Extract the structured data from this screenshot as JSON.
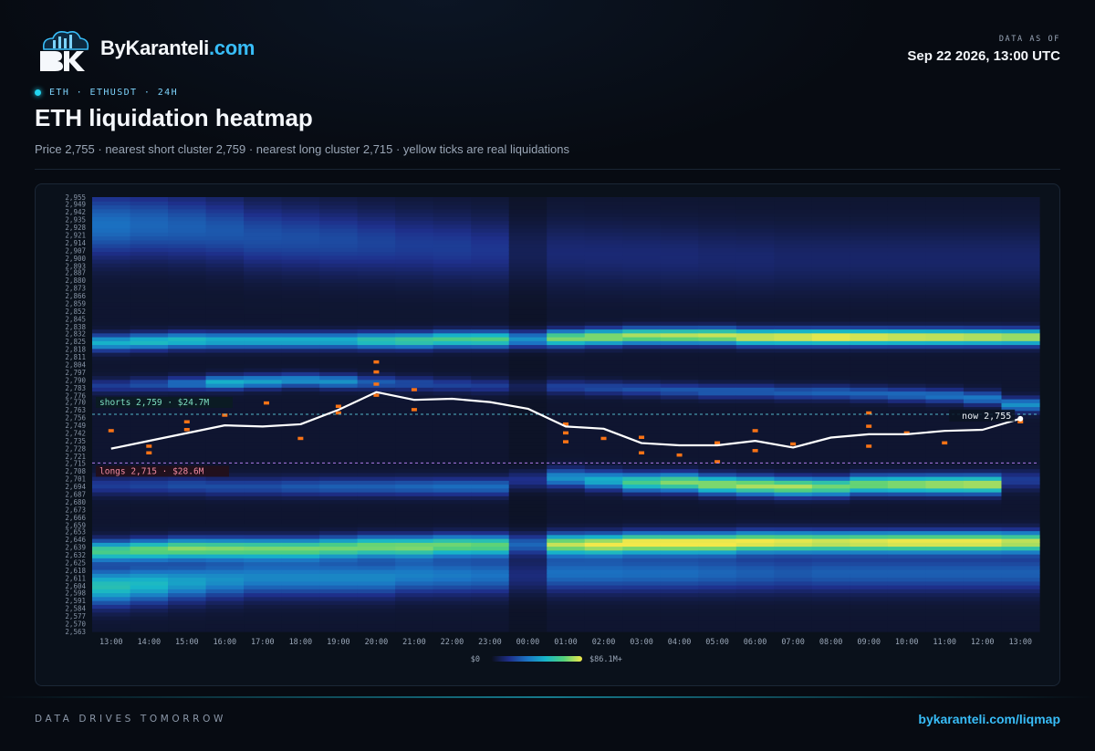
{
  "header": {
    "brand_name": "ByKaranteli",
    "brand_tld": ".com",
    "logo_icon": "bk-cloud-logo",
    "data_as_of_label": "DATA AS OF",
    "data_as_of_value": "Sep 22 2026, 13:00 UTC",
    "ticker": "ETH · ETHUSDT · 24H",
    "title": "ETH liquidation heatmap",
    "subtitle": "Price 2,755 · nearest short cluster 2,759 · nearest long cluster 2,715 · yellow ticks are real liquidations"
  },
  "footer": {
    "tagline": "DATA DRIVES TOMORROW",
    "url": "bykaranteli.com/liqmap"
  },
  "colors": {
    "accent": "#38bdf8",
    "price_line": "#ffffff",
    "short_line": "#5fd3e6",
    "long_line": "#c084fc",
    "liquidation_tick": "#f97316",
    "colorscale": [
      "#0b0f1a",
      "#1e2f8a",
      "#1b74c4",
      "#17b6c9",
      "#54d17a",
      "#f2e84a"
    ]
  },
  "chart_data": {
    "type": "heatmap",
    "y_labels": [
      "2,955",
      "2,949",
      "2,942",
      "2,935",
      "2,928",
      "2,921",
      "2,914",
      "2,907",
      "2,900",
      "2,893",
      "2,887",
      "2,880",
      "2,873",
      "2,866",
      "2,859",
      "2,852",
      "2,845",
      "2,838",
      "2,832",
      "2,825",
      "2,818",
      "2,811",
      "2,804",
      "2,797",
      "2,790",
      "2,783",
      "2,776",
      "2,770",
      "2,763",
      "2,756",
      "2,749",
      "2,742",
      "2,735",
      "2,728",
      "2,721",
      "2,715",
      "2,708",
      "2,701",
      "2,694",
      "2,687",
      "2,680",
      "2,673",
      "2,666",
      "2,659",
      "2,653",
      "2,646",
      "2,639",
      "2,632",
      "2,625",
      "2,618",
      "2,611",
      "2,604",
      "2,598",
      "2,591",
      "2,584",
      "2,577",
      "2,570",
      "2,563"
    ],
    "ylim": [
      2563,
      2955
    ],
    "x_labels": [
      "13:00",
      "14:00",
      "15:00",
      "16:00",
      "17:00",
      "18:00",
      "19:00",
      "20:00",
      "21:00",
      "22:00",
      "23:00",
      "00:00",
      "01:00",
      "02:00",
      "03:00",
      "04:00",
      "05:00",
      "06:00",
      "07:00",
      "08:00",
      "09:00",
      "10:00",
      "11:00",
      "12:00",
      "13:00"
    ],
    "price": [
      2728,
      2735,
      2742,
      2749,
      2748,
      2750,
      2763,
      2779,
      2772,
      2773,
      2770,
      2764,
      2748,
      2746,
      2733,
      2731,
      2731,
      2735,
      2729,
      2738,
      2741,
      2741,
      2744,
      2745,
      2755
    ],
    "current_price": 2755,
    "now_label": "now 2,755",
    "short_cluster": {
      "price": 2759,
      "label": "shorts 2,759 · $24.7M"
    },
    "long_cluster": {
      "price": 2715,
      "label": "longs 2,715 · $28.6M"
    },
    "bands": [
      {
        "center": [
          2824,
          2825,
          2826,
          2826,
          2826,
          2826,
          2826,
          2826,
          2826,
          2827,
          2827,
          2827,
          2828,
          2829,
          2830,
          2830,
          2830,
          2829,
          2829,
          2829,
          2829,
          2829,
          2829,
          2829,
          2829
        ],
        "width": 7,
        "strength": [
          0.55,
          0.6,
          0.6,
          0.55,
          0.55,
          0.55,
          0.55,
          0.65,
          0.7,
          0.72,
          0.74,
          0.78,
          0.82,
          0.86,
          0.88,
          0.9,
          0.92,
          0.95,
          0.97,
          1,
          0.98,
          0.96,
          0.95,
          0.93,
          0.9
        ]
      },
      {
        "center": [
          2636,
          2637,
          2638,
          2638,
          2638,
          2638,
          2639,
          2640,
          2640,
          2641,
          2641,
          2642,
          2642,
          2642,
          2643,
          2643,
          2643,
          2644,
          2644,
          2644,
          2644,
          2644,
          2644,
          2644,
          2644
        ],
        "width": 9,
        "strength": [
          0.72,
          0.78,
          0.82,
          0.8,
          0.78,
          0.78,
          0.78,
          0.8,
          0.8,
          0.78,
          0.76,
          0.55,
          0.88,
          0.95,
          1,
          1,
          1,
          0.97,
          0.95,
          0.92,
          0.94,
          0.96,
          0.96,
          0.96,
          0.9
        ]
      },
      {
        "center": [
          2604,
          2606,
          2608,
          2610,
          2612,
          2612,
          2612,
          2612,
          2614,
          2614,
          2614,
          2614,
          2616,
          2616,
          2616,
          2616,
          2616,
          2616,
          2616,
          2616,
          2616,
          2616,
          2616,
          2616,
          2616
        ],
        "width": 16,
        "strength": [
          0.62,
          0.58,
          0.5,
          0.45,
          0.42,
          0.42,
          0.42,
          0.42,
          0.4,
          0.38,
          0.36,
          0.25,
          0.35,
          0.35,
          0.34,
          0.34,
          0.32,
          0.3,
          0.28,
          0.3,
          0.3,
          0.3,
          0.3,
          0.3,
          0.3
        ]
      },
      {
        "center": [
          2695,
          2695,
          2695,
          2694,
          2694,
          2694,
          2694,
          2694,
          2694,
          2694,
          2694,
          2700,
          2702,
          2700,
          2698,
          2698,
          2696,
          2695,
          2694,
          2694,
          2696,
          2696,
          2696,
          2696,
          2700
        ],
        "width": 8,
        "strength": [
          0.2,
          0.22,
          0.25,
          0.25,
          0.25,
          0.28,
          0.3,
          0.3,
          0.32,
          0.34,
          0.34,
          0.3,
          0.45,
          0.55,
          0.72,
          0.82,
          0.85,
          0.88,
          0.88,
          0.8,
          0.82,
          0.85,
          0.88,
          0.9,
          0.2
        ]
      },
      {
        "center": [
          2785,
          2786,
          2787,
          2788,
          2789,
          2790,
          2789,
          2788,
          2787,
          2786,
          2785,
          2784,
          2784,
          2783,
          2782,
          2781,
          2780,
          2780,
          2779,
          2779,
          2778,
          2777,
          2776,
          2774,
          2768
        ],
        "width": 6,
        "strength": [
          0.2,
          0.25,
          0.35,
          0.55,
          0.5,
          0.45,
          0.45,
          0.3,
          0.25,
          0.22,
          0.2,
          0.15,
          0.22,
          0.24,
          0.26,
          0.28,
          0.3,
          0.3,
          0.3,
          0.32,
          0.32,
          0.34,
          0.36,
          0.38,
          0.45
        ]
      },
      {
        "center": [
          2930,
          2930,
          2928,
          2925,
          2920,
          2918,
          2916,
          2914,
          2912,
          2910,
          2908,
          2906,
          2905,
          2904,
          2903,
          2902,
          2901,
          2900,
          2900,
          2900,
          2900,
          2900,
          2900,
          2900,
          2900
        ],
        "width": 28,
        "strength": [
          0.35,
          0.32,
          0.3,
          0.28,
          0.26,
          0.25,
          0.24,
          0.22,
          0.2,
          0.2,
          0.18,
          0.14,
          0.12,
          0.12,
          0.12,
          0.12,
          0.11,
          0.11,
          0.1,
          0.1,
          0.1,
          0.1,
          0.1,
          0.1,
          0.1
        ]
      }
    ],
    "liquidations": [
      {
        "x": 0.5,
        "price": 2744
      },
      {
        "x": 1.5,
        "price": 2724
      },
      {
        "x": 1.5,
        "price": 2730
      },
      {
        "x": 2.5,
        "price": 2745
      },
      {
        "x": 2.5,
        "price": 2752
      },
      {
        "x": 3.5,
        "price": 2758
      },
      {
        "x": 4.6,
        "price": 2769
      },
      {
        "x": 5.5,
        "price": 2737
      },
      {
        "x": 6.5,
        "price": 2760
      },
      {
        "x": 6.5,
        "price": 2766
      },
      {
        "x": 7.5,
        "price": 2776
      },
      {
        "x": 7.5,
        "price": 2786
      },
      {
        "x": 7.5,
        "price": 2797
      },
      {
        "x": 7.5,
        "price": 2806
      },
      {
        "x": 8.5,
        "price": 2781
      },
      {
        "x": 8.5,
        "price": 2763
      },
      {
        "x": 12.5,
        "price": 2734
      },
      {
        "x": 12.5,
        "price": 2742
      },
      {
        "x": 12.5,
        "price": 2750
      },
      {
        "x": 13.5,
        "price": 2737
      },
      {
        "x": 14.5,
        "price": 2724
      },
      {
        "x": 14.5,
        "price": 2738
      },
      {
        "x": 15.5,
        "price": 2722
      },
      {
        "x": 16.5,
        "price": 2733
      },
      {
        "x": 16.5,
        "price": 2716
      },
      {
        "x": 17.5,
        "price": 2726
      },
      {
        "x": 17.5,
        "price": 2744
      },
      {
        "x": 18.5,
        "price": 2732
      },
      {
        "x": 20.5,
        "price": 2730
      },
      {
        "x": 20.5,
        "price": 2748
      },
      {
        "x": 20.5,
        "price": 2760
      },
      {
        "x": 21.5,
        "price": 2742
      },
      {
        "x": 22.5,
        "price": 2733
      },
      {
        "x": 24.5,
        "price": 2752
      }
    ],
    "colorbar": {
      "min_label": "$0",
      "max_label": "$86.1M+"
    }
  }
}
